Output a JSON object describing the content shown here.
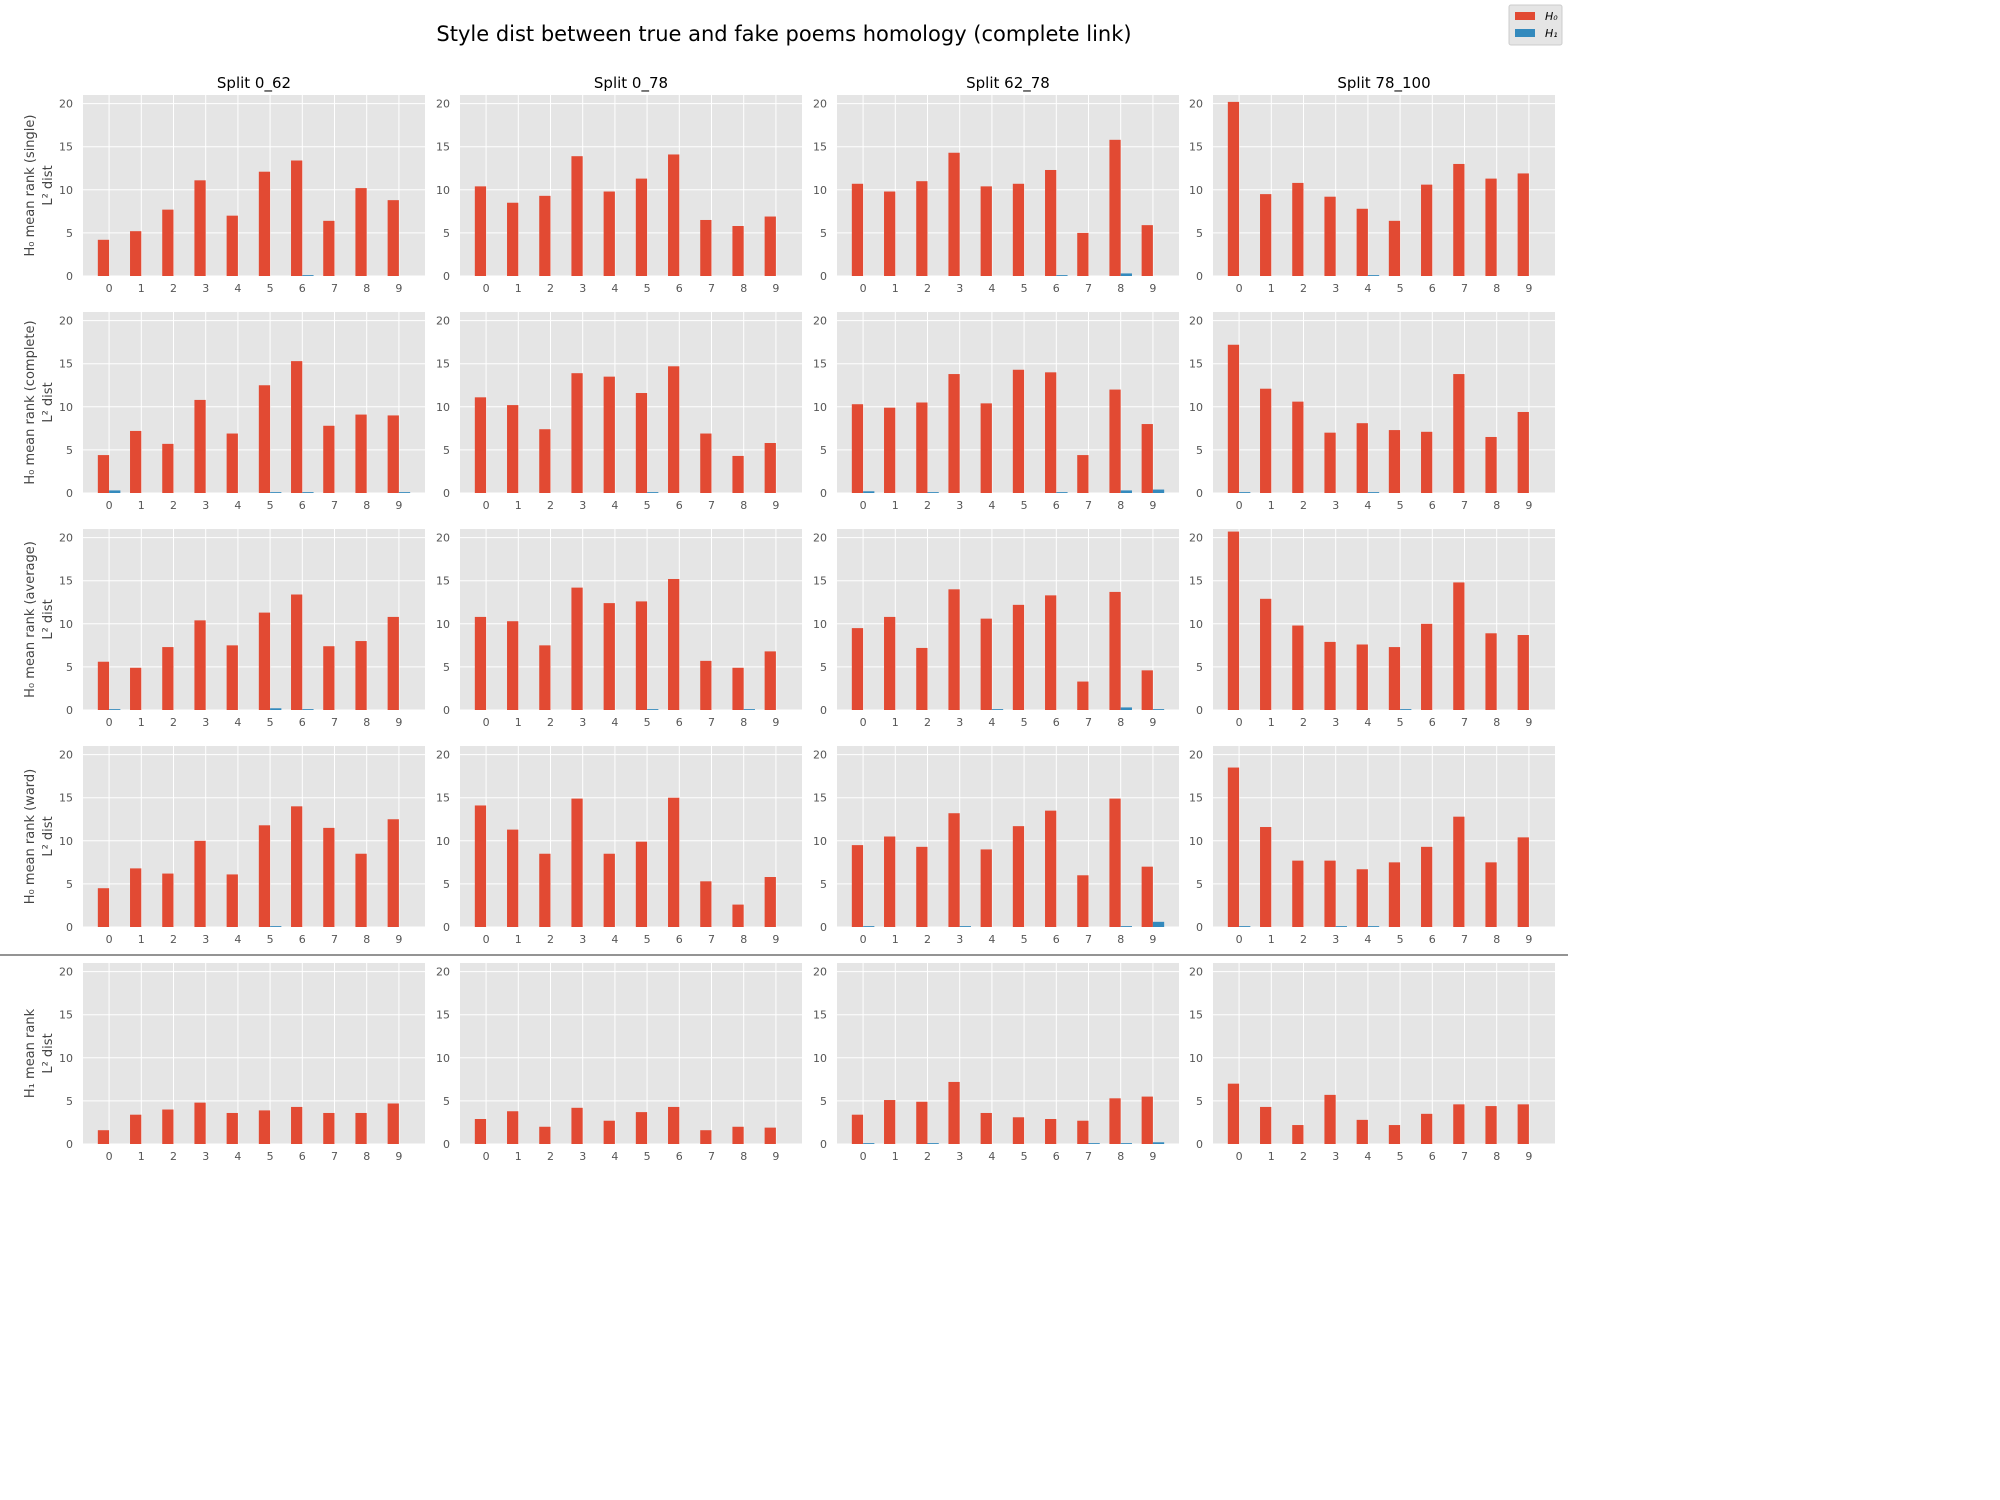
{
  "figure": {
    "title": "Style dist between true and fake poems homology (complete link)",
    "legend": [
      "H₀",
      "H₁"
    ],
    "columns": [
      "Split 0_62",
      "Split 0_78",
      "Split 62_78",
      "Split 78_100"
    ],
    "rows": [
      {
        "line1": "H₀ mean rank (single)",
        "line2": "L² dist"
      },
      {
        "line1": "H₀ mean rank (complete)",
        "line2": "L² dist"
      },
      {
        "line1": "H₀ mean rank (average)",
        "line2": "L² dist"
      },
      {
        "line1": "H₀ mean rank (ward)",
        "line2": "L² dist"
      },
      {
        "line1": "H₁ mean rank",
        "line2": "L² dist"
      }
    ],
    "colors": {
      "h0": "#E24A33",
      "h1": "#348ABD",
      "panel_bg": "#E5E5E5",
      "grid": "#FFFFFF"
    }
  },
  "chart_data": {
    "type": "bar",
    "categories": [
      "0",
      "1",
      "2",
      "3",
      "4",
      "5",
      "6",
      "7",
      "8",
      "9"
    ],
    "yticks": [
      "0",
      "5",
      "10",
      "15",
      "20"
    ],
    "ylim": [
      0,
      21
    ],
    "series_names": [
      "H₀",
      "H₁"
    ],
    "panels": [
      [
        {
          "h0": [
            4.2,
            5.2,
            7.7,
            11.1,
            7.0,
            12.1,
            13.4,
            6.4,
            10.2,
            8.8
          ],
          "h1": [
            0,
            0,
            0,
            0,
            0,
            0,
            0.1,
            0,
            0,
            0
          ]
        },
        {
          "h0": [
            10.4,
            8.5,
            9.3,
            13.9,
            9.8,
            11.3,
            14.1,
            6.5,
            5.8,
            6.9
          ],
          "h1": [
            0,
            0,
            0,
            0,
            0,
            0,
            0,
            0,
            0,
            0
          ]
        },
        {
          "h0": [
            10.7,
            9.8,
            11.0,
            14.3,
            10.4,
            10.7,
            12.3,
            5.0,
            15.8,
            5.9
          ],
          "h1": [
            0,
            0,
            0,
            0,
            0,
            0,
            0.1,
            0,
            0.3,
            0
          ]
        },
        {
          "h0": [
            20.2,
            9.5,
            10.8,
            9.2,
            7.8,
            6.4,
            10.6,
            13.0,
            11.3,
            11.9
          ],
          "h1": [
            0,
            0,
            0,
            0,
            0.1,
            0,
            0,
            0,
            0,
            0
          ]
        }
      ],
      [
        {
          "h0": [
            4.4,
            7.2,
            5.7,
            10.8,
            6.9,
            12.5,
            15.3,
            7.8,
            9.1,
            9.0
          ],
          "h1": [
            0.3,
            0,
            0,
            0,
            0,
            0.1,
            0.1,
            0,
            0,
            0.1
          ]
        },
        {
          "h0": [
            11.1,
            10.2,
            7.4,
            13.9,
            13.5,
            11.6,
            14.7,
            6.9,
            4.3,
            5.8
          ],
          "h1": [
            0,
            0,
            0,
            0,
            0,
            0.1,
            0,
            0,
            0,
            0
          ]
        },
        {
          "h0": [
            10.3,
            9.9,
            10.5,
            13.8,
            10.4,
            14.3,
            14.0,
            4.4,
            12.0,
            8.0
          ],
          "h1": [
            0.2,
            0,
            0.1,
            0,
            0,
            0,
            0.1,
            0,
            0.3,
            0.4
          ]
        },
        {
          "h0": [
            17.2,
            12.1,
            10.6,
            7.0,
            8.1,
            7.3,
            7.1,
            13.8,
            6.5,
            9.4
          ],
          "h1": [
            0.1,
            0,
            0,
            0,
            0.1,
            0,
            0,
            0,
            0,
            0
          ]
        }
      ],
      [
        {
          "h0": [
            5.6,
            4.9,
            7.3,
            10.4,
            7.5,
            11.3,
            13.4,
            7.4,
            8.0,
            10.8
          ],
          "h1": [
            0.1,
            0,
            0,
            0,
            0,
            0.2,
            0.1,
            0,
            0,
            0
          ]
        },
        {
          "h0": [
            10.8,
            10.3,
            7.5,
            14.2,
            12.4,
            12.6,
            15.2,
            5.7,
            4.9,
            6.8
          ],
          "h1": [
            0,
            0,
            0,
            0,
            0,
            0.1,
            0,
            0,
            0.1,
            0
          ]
        },
        {
          "h0": [
            9.5,
            10.8,
            7.2,
            14.0,
            10.6,
            12.2,
            13.3,
            3.3,
            13.7,
            4.6
          ],
          "h1": [
            0,
            0,
            0,
            0,
            0.1,
            0,
            0,
            0,
            0.3,
            0.1
          ]
        },
        {
          "h0": [
            20.7,
            12.9,
            9.8,
            7.9,
            7.6,
            7.3,
            10.0,
            14.8,
            8.9,
            8.7
          ],
          "h1": [
            0,
            0,
            0,
            0,
            0,
            0.1,
            0,
            0,
            0,
            0
          ]
        }
      ],
      [
        {
          "h0": [
            4.5,
            6.8,
            6.2,
            10.0,
            6.1,
            11.8,
            14.0,
            11.5,
            8.5,
            12.5
          ],
          "h1": [
            0,
            0,
            0,
            0,
            0,
            0.1,
            0,
            0,
            0,
            0
          ]
        },
        {
          "h0": [
            14.1,
            11.3,
            8.5,
            14.9,
            8.5,
            9.9,
            15.0,
            5.3,
            2.6,
            5.8
          ],
          "h1": [
            0,
            0,
            0,
            0,
            0,
            0,
            0,
            0,
            0,
            0
          ]
        },
        {
          "h0": [
            9.5,
            10.5,
            9.3,
            13.2,
            9.0,
            11.7,
            13.5,
            6.0,
            14.9,
            7.0
          ],
          "h1": [
            0.1,
            0,
            0,
            0.1,
            0,
            0,
            0,
            0,
            0.1,
            0.6
          ]
        },
        {
          "h0": [
            18.5,
            11.6,
            7.7,
            7.7,
            6.7,
            7.5,
            9.3,
            12.8,
            7.5,
            10.4
          ],
          "h1": [
            0.1,
            0,
            0,
            0.1,
            0.1,
            0,
            0,
            0,
            0,
            0
          ]
        }
      ],
      [
        {
          "h0": [
            1.6,
            3.4,
            4.0,
            4.8,
            3.6,
            3.9,
            4.3,
            3.6,
            3.6,
            4.7
          ],
          "h1": [
            0,
            0,
            0,
            0,
            0,
            0,
            0,
            0,
            0,
            0
          ]
        },
        {
          "h0": [
            2.9,
            3.8,
            2.0,
            4.2,
            2.7,
            3.7,
            4.3,
            1.6,
            2.0,
            1.9
          ],
          "h1": [
            0,
            0,
            0,
            0,
            0,
            0,
            0,
            0,
            0,
            0
          ]
        },
        {
          "h0": [
            3.4,
            5.1,
            4.9,
            7.2,
            3.6,
            3.1,
            2.9,
            2.7,
            5.3,
            5.5
          ],
          "h1": [
            0.1,
            0,
            0.1,
            0,
            0,
            0,
            0,
            0.1,
            0.1,
            0.2
          ]
        },
        {
          "h0": [
            7.0,
            4.3,
            2.2,
            5.7,
            2.8,
            2.2,
            3.5,
            4.6,
            4.4,
            4.6
          ],
          "h1": [
            0,
            0,
            0,
            0,
            0,
            0,
            0,
            0,
            0,
            0
          ]
        }
      ]
    ]
  }
}
